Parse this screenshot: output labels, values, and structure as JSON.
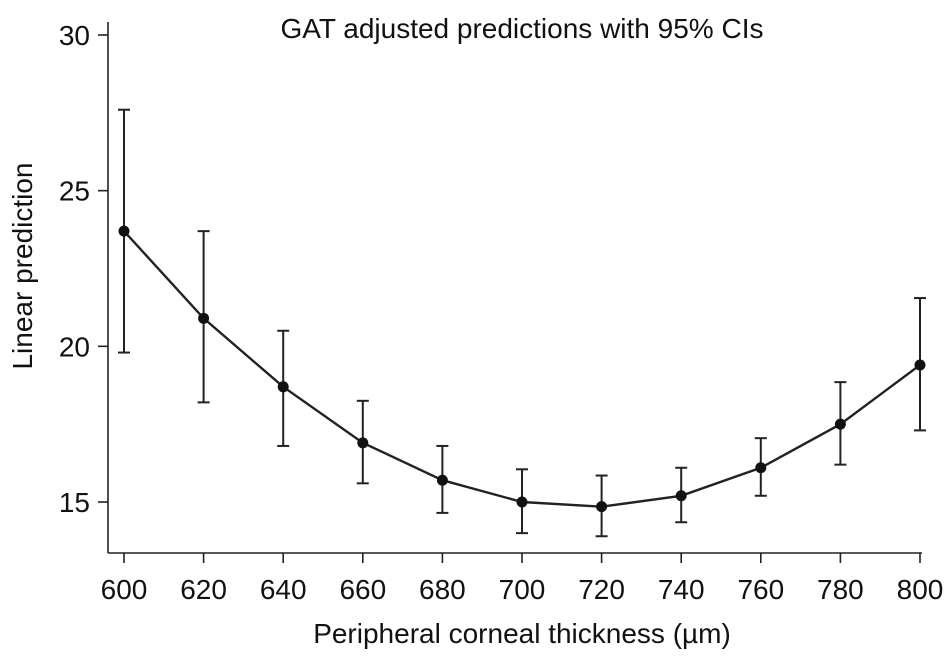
{
  "chart_data": {
    "type": "line",
    "title": "GAT adjusted predictions with 95% CIs",
    "xlabel": "Peripheral corneal thickness (µm)",
    "ylabel": "Linear prediction",
    "xlim": [
      600,
      800
    ],
    "ylim": [
      13.5,
      30.5
    ],
    "xticks": [
      600,
      620,
      640,
      660,
      680,
      700,
      720,
      740,
      760,
      780,
      800
    ],
    "yticks": [
      15,
      20,
      25,
      30
    ],
    "grid": false,
    "series": [
      {
        "x": [
          600,
          620,
          640,
          660,
          680,
          700,
          720,
          740,
          760,
          780,
          800
        ],
        "y": [
          23.7,
          20.9,
          18.7,
          16.9,
          15.7,
          15.0,
          14.85,
          15.2,
          16.1,
          17.5,
          19.4
        ],
        "ci_low": [
          19.8,
          18.2,
          16.8,
          15.6,
          14.65,
          14.0,
          13.9,
          14.35,
          15.2,
          16.2,
          17.3
        ],
        "ci_high": [
          27.6,
          23.7,
          20.5,
          18.25,
          16.8,
          16.05,
          15.85,
          16.1,
          17.05,
          18.85,
          21.55
        ]
      }
    ],
    "colors": {
      "line": "#222222",
      "marker": "#111111"
    }
  }
}
